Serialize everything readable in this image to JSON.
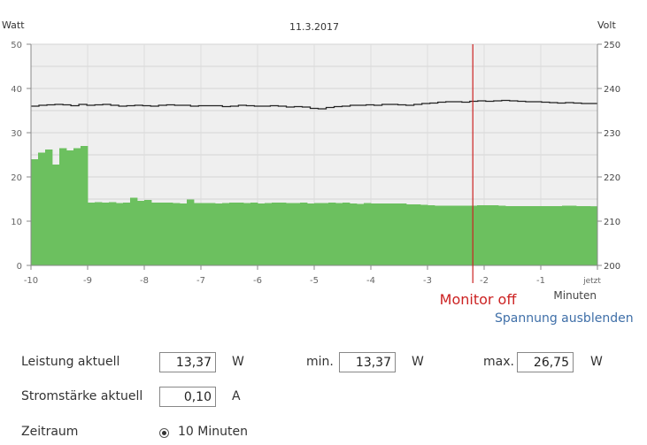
{
  "chart_data": {
    "type": "bar",
    "title": "11.3.2017",
    "ylabel_left": "Watt",
    "ylabel_right": "Volt",
    "xlabel": "Minuten",
    "xlim": [
      -10,
      0
    ],
    "ylim_left": [
      0,
      50
    ],
    "ylim_right": [
      200,
      250
    ],
    "x_ticks": [
      "-10",
      "-9",
      "-8",
      "-7",
      "-6",
      "-5",
      "-4",
      "-3",
      "-2",
      "-1",
      "jetzt"
    ],
    "y_ticks_left": [
      "0",
      "10",
      "20",
      "30",
      "40",
      "50"
    ],
    "y_ticks_right": [
      "200",
      "210",
      "220",
      "230",
      "240",
      "250"
    ],
    "grid": true,
    "series": [
      {
        "name": "Watt",
        "type": "bar",
        "color": "#6cc05f",
        "values": [
          24,
          25.5,
          26.2,
          22.8,
          26.5,
          26,
          26.5,
          27,
          14.2,
          14.3,
          14.2,
          14.3,
          14.1,
          14.2,
          15.3,
          14.6,
          14.8,
          14.2,
          14.2,
          14.2,
          14.1,
          14.0,
          14.9,
          14.1,
          14.1,
          14.1,
          14.0,
          14.1,
          14.2,
          14.2,
          14.1,
          14.2,
          14.0,
          14.1,
          14.2,
          14.2,
          14.1,
          14.1,
          14.2,
          14.0,
          14.1,
          14.1,
          14.2,
          14.1,
          14.2,
          14.0,
          13.9,
          14.1,
          14.0,
          14.0,
          14.0,
          14.0,
          14.0,
          13.8,
          13.8,
          13.7,
          13.6,
          13.5,
          13.5,
          13.5,
          13.5,
          13.5,
          13.5,
          13.6,
          13.6,
          13.6,
          13.5,
          13.4,
          13.4,
          13.4,
          13.4,
          13.4,
          13.4,
          13.4,
          13.4,
          13.5,
          13.5,
          13.4,
          13.4,
          13.37
        ]
      },
      {
        "name": "Volt",
        "type": "line",
        "axis": "right",
        "color": "#222222",
        "values": [
          236.0,
          236.2,
          236.3,
          236.4,
          236.3,
          236.1,
          236.4,
          236.2,
          236.3,
          236.4,
          236.2,
          236.0,
          236.1,
          236.2,
          236.1,
          236.0,
          236.2,
          236.3,
          236.2,
          236.2,
          236.0,
          236.1,
          236.1,
          236.1,
          235.9,
          236.0,
          236.2,
          236.1,
          236.0,
          236.0,
          236.1,
          236.0,
          235.8,
          235.9,
          235.8,
          235.5,
          235.4,
          235.7,
          235.9,
          236.0,
          236.2,
          236.2,
          236.3,
          236.2,
          236.4,
          236.4,
          236.3,
          236.2,
          236.4,
          236.6,
          236.7,
          236.9,
          237.0,
          237.0,
          236.9,
          237.1,
          237.2,
          237.1,
          237.2,
          237.3,
          237.2,
          237.1,
          237.0,
          237.0,
          236.9,
          236.8,
          236.7,
          236.8,
          236.7,
          236.6,
          236.6
        ]
      }
    ],
    "annotations": [
      {
        "text": "Monitor off",
        "x": -2.2,
        "color": "#cc2222"
      }
    ]
  },
  "links": {
    "toggle_voltage": "Spannung ausblenden"
  },
  "stats": {
    "power_label": "Leistung aktuell",
    "power_value": "13,37",
    "power_unit": "W",
    "min_label": "min.",
    "min_value": "13,37",
    "min_unit": "W",
    "max_label": "max.",
    "max_value": "26,75",
    "max_unit": "W",
    "current_label": "Stromstärke aktuell",
    "current_value": "0,10",
    "current_unit": "A",
    "period_label": "Zeitraum",
    "period_option": "10 Minuten"
  }
}
